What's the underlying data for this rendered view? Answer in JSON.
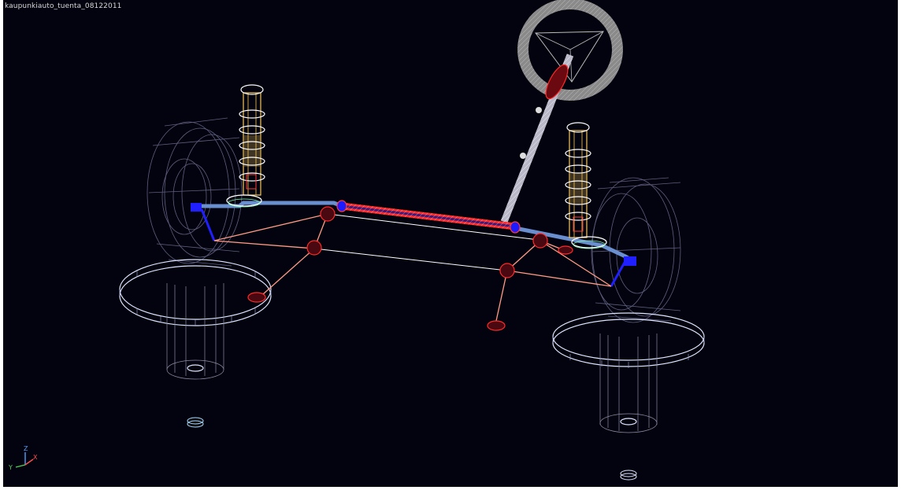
{
  "viewport": {
    "title": "kaupunkiauto_tuenta_08122011",
    "background": "#03030f"
  },
  "triad": {
    "z_label": "Z",
    "y_label": "Y",
    "x_label": "X",
    "colors": {
      "z": "#4fa0ff",
      "y": "#4fd05a",
      "x": "#ff5050"
    }
  },
  "palette": {
    "wire": "#dfe6ff",
    "wire_dim": "#6e6e90",
    "spring": "#f5c65a",
    "red_part": "#ff2a2a",
    "blue_part": "#2020ff",
    "steel_blue": "#6a8fcf",
    "wheel_gray": "#8c8c8c"
  }
}
